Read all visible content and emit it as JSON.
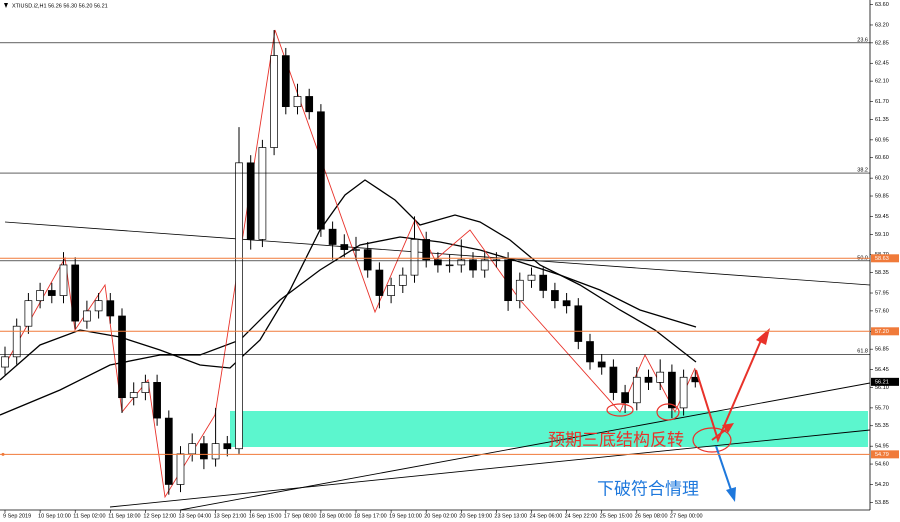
{
  "header": "XTIUSD.i2,H1  56.26 56.30 56.20 56.21",
  "chart_data": {
    "type": "candlestick",
    "categories": [
      "9 Sep 2019",
      null,
      null,
      "10 Sep 10:00",
      null,
      null,
      "11 Sep 02:00",
      null,
      null,
      "11 Sep 18:00",
      null,
      null,
      "12 Sep 12:00",
      null,
      null,
      "13 Sep 04:00",
      null,
      null,
      "13 Sep 21:00",
      null,
      null,
      "16 Sep 15:00",
      null,
      null,
      "17 Sep 08:00",
      null,
      null,
      "18 Sep 00:00",
      null,
      null,
      "18 Sep 17:00",
      null,
      null,
      "19 Sep 10:00",
      null,
      null,
      "20 Sep 02:00",
      null,
      null,
      "20 Sep 19:00",
      null,
      null,
      "23 Sep 13:00",
      null,
      null,
      "24 Sep 06:00",
      null,
      null,
      "24 Sep 22:00",
      null,
      null,
      "25 Sep 15:00",
      null,
      null,
      "26 Sep 08:00",
      null,
      null,
      "27 Sep 00:00",
      null,
      null
    ],
    "open": [
      56.5,
      56.7,
      57.3,
      57.8,
      58.0,
      57.9,
      58.5,
      57.4,
      57.6,
      57.8,
      57.5,
      55.9,
      56.0,
      56.2,
      55.5,
      54.2,
      54.8,
      55.0,
      54.7,
      55.0,
      54.9,
      60.5,
      59.0,
      60.8,
      62.6,
      61.6,
      61.8,
      61.5,
      59.2,
      58.9,
      58.8,
      58.8,
      58.4,
      57.9,
      58.1,
      58.3,
      59.0,
      58.6,
      58.5,
      58.5,
      58.6,
      58.4,
      58.6,
      58.6,
      57.8,
      58.2,
      58.3,
      58.0,
      57.8,
      57.7,
      57.0,
      56.6,
      56.5,
      56.0,
      55.8,
      56.3,
      56.2,
      56.4,
      55.7,
      56.3
    ],
    "high": [
      56.9,
      57.45,
      57.95,
      58.15,
      58.15,
      58.75,
      58.65,
      57.8,
      57.95,
      57.95,
      57.65,
      56.2,
      56.35,
      56.35,
      55.65,
      54.95,
      55.2,
      55.15,
      55.7,
      55.15,
      61.2,
      60.65,
      60.95,
      63.1,
      62.75,
      62.05,
      61.95,
      61.65,
      59.35,
      59.1,
      59.05,
      58.95,
      58.55,
      58.25,
      58.45,
      59.45,
      59.15,
      58.75,
      58.7,
      59.0,
      58.75,
      58.75,
      58.75,
      58.75,
      58.35,
      58.45,
      58.45,
      58.15,
      57.95,
      57.85,
      57.15,
      56.75,
      56.65,
      56.15,
      56.5,
      56.45,
      56.65,
      56.55,
      56.45,
      56.45
    ],
    "low": [
      56.35,
      56.55,
      57.15,
      57.65,
      57.75,
      57.75,
      57.25,
      57.25,
      57.45,
      57.35,
      55.6,
      55.75,
      55.85,
      55.35,
      54.0,
      54.05,
      54.65,
      54.5,
      54.55,
      54.75,
      54.8,
      58.8,
      58.85,
      60.65,
      61.45,
      61.45,
      61.35,
      59.05,
      58.6,
      58.65,
      58.6,
      58.25,
      57.65,
      57.75,
      57.95,
      58.15,
      58.45,
      58.35,
      58.35,
      58.35,
      58.25,
      58.25,
      58.45,
      57.6,
      57.65,
      58.05,
      57.85,
      57.65,
      57.55,
      56.85,
      56.45,
      56.35,
      55.85,
      55.6,
      55.65,
      56.05,
      56.05,
      55.5,
      55.55,
      56.1
    ],
    "close": [
      56.7,
      57.3,
      57.8,
      58.0,
      57.9,
      58.5,
      57.4,
      57.6,
      57.8,
      57.5,
      55.9,
      56.0,
      56.2,
      55.5,
      54.2,
      54.8,
      55.0,
      54.7,
      55.0,
      54.9,
      60.5,
      59.0,
      60.8,
      62.6,
      61.6,
      61.8,
      61.5,
      59.2,
      58.9,
      58.8,
      58.8,
      58.4,
      57.9,
      58.1,
      58.3,
      59.0,
      58.6,
      58.5,
      58.5,
      58.6,
      58.4,
      58.6,
      58.6,
      57.8,
      58.2,
      58.3,
      58.0,
      57.8,
      57.7,
      57.0,
      56.6,
      56.5,
      56.0,
      55.8,
      56.3,
      56.2,
      56.4,
      55.7,
      56.3,
      56.21
    ],
    "ylim": [
      53.7,
      63.65
    ],
    "yticks": [
      {
        "value": 63.6,
        "label": "63.60"
      },
      {
        "value": 63.2,
        "label": "63.20"
      },
      {
        "value": 62.85,
        "label": "62.85"
      },
      {
        "value": 62.45,
        "label": "62.45"
      },
      {
        "value": 62.1,
        "label": "62.10"
      },
      {
        "value": 61.7,
        "label": "61.70"
      },
      {
        "value": 61.35,
        "label": "61.35"
      },
      {
        "value": 60.95,
        "label": "60.95"
      },
      {
        "value": 60.6,
        "label": "60.60"
      },
      {
        "value": 60.2,
        "label": "60.20"
      },
      {
        "value": 59.85,
        "label": "59.85"
      },
      {
        "value": 59.45,
        "label": "59.45"
      },
      {
        "value": 59.1,
        "label": "59.10"
      },
      {
        "value": 58.7,
        "label": "58.70"
      },
      {
        "value": 58.35,
        "label": "58.35"
      },
      {
        "value": 57.95,
        "label": "57.95"
      },
      {
        "value": 57.6,
        "label": "57.60"
      },
      {
        "value": 57.2,
        "label": "57.20"
      },
      {
        "value": 56.85,
        "label": "56.85"
      },
      {
        "value": 56.45,
        "label": "56.45"
      },
      {
        "value": 56.1,
        "label": "56.10"
      },
      {
        "value": 55.7,
        "label": "55.70"
      },
      {
        "value": 55.35,
        "label": "55.35"
      },
      {
        "value": 54.95,
        "label": "54.95"
      },
      {
        "value": 54.6,
        "label": "54.60"
      },
      {
        "value": 54.2,
        "label": "54.20"
      },
      {
        "value": 53.85,
        "label": "53.85"
      }
    ],
    "grid": false,
    "levels": [
      {
        "value": 58.63,
        "label": "58.63"
      },
      {
        "value": 57.2,
        "label": "57.20"
      },
      {
        "value": 54.79,
        "label": "54.79"
      }
    ],
    "level_color": "#f07a3a",
    "fib_levels": [
      {
        "value": 62.85,
        "label": "23.6"
      },
      {
        "value": 60.3,
        "label": "38.2"
      },
      {
        "value": 58.58,
        "label": "50.0"
      },
      {
        "value": 56.75,
        "label": "61.8"
      }
    ],
    "current_price": 56.21,
    "annotations": [
      "预期三底结构反转",
      "下破符合情理"
    ]
  }
}
